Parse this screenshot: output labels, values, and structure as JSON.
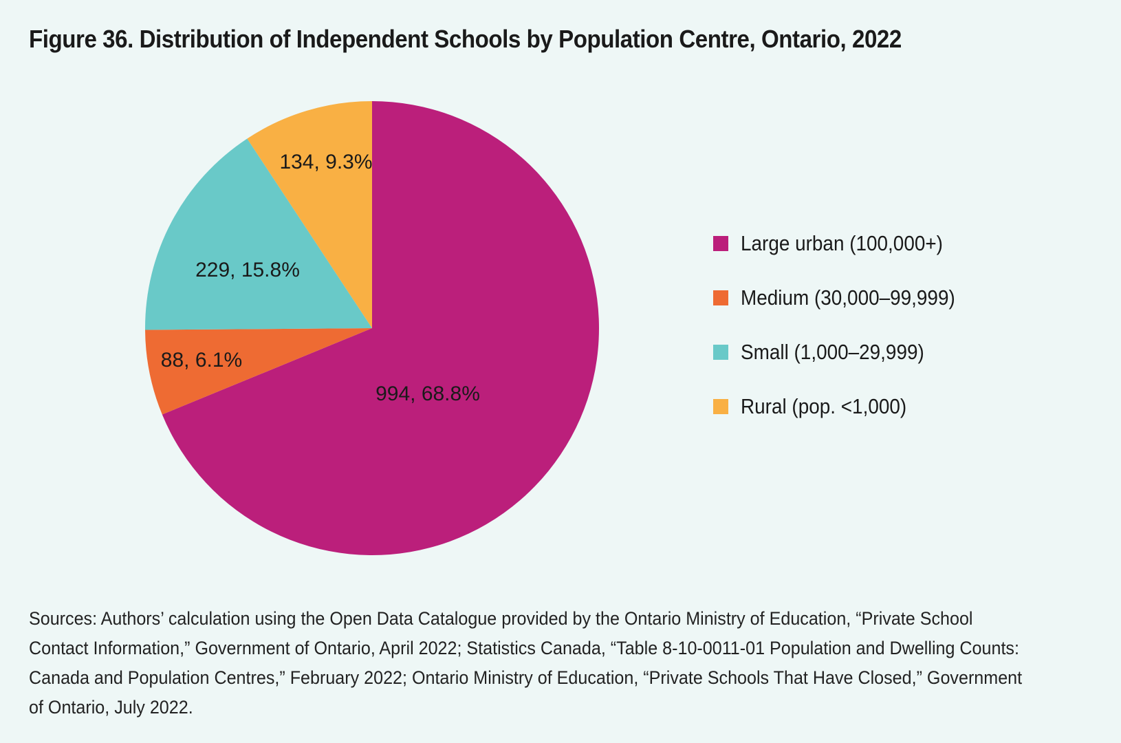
{
  "title": "Figure 36. Distribution of Independent Schools by Population Centre, Ontario, 2022",
  "chart_data": {
    "type": "pie",
    "start_angle_deg": 0,
    "direction": "clockwise",
    "slices": [
      {
        "name": "Large urban (100,000+)",
        "value": 994,
        "percent": 68.8,
        "label": "994, 68.8%",
        "color": "#bb1f7b"
      },
      {
        "name": "Medium (30,000–99,999)",
        "value": 88,
        "percent": 6.1,
        "label": "88, 6.1%",
        "color": "#ee6b33"
      },
      {
        "name": "Small (1,000–29,999)",
        "value": 229,
        "percent": 15.8,
        "label": "229, 15.8%",
        "color": "#69c9c8"
      },
      {
        "name": "Rural (pop. <1,000)",
        "value": 134,
        "percent": 9.3,
        "label": "134, 9.3%",
        "color": "#f9b044"
      }
    ],
    "legend_position": "right"
  },
  "legend": {
    "items": [
      {
        "label": "Large urban (100,000+)",
        "color": "#bb1f7b"
      },
      {
        "label": "Medium (30,000–99,999)",
        "color": "#ee6b33"
      },
      {
        "label": "Small (1,000–29,999)",
        "color": "#69c9c8"
      },
      {
        "label": "Rural (pop. <1,000)",
        "color": "#f9b044"
      }
    ]
  },
  "sources": "Sources: Authors’ calculation using the Open Data Catalogue provided by the Ontario Ministry of Education, “Private School Contact Information,” Government of Ontario, April 2022; Statistics Canada, “Table 8-10-0011-01 Population and Dwelling Counts: Canada and Population Centres,” February 2022; Ontario Ministry of Education, “Private Schools That Have Closed,” Government of Ontario, July 2022."
}
